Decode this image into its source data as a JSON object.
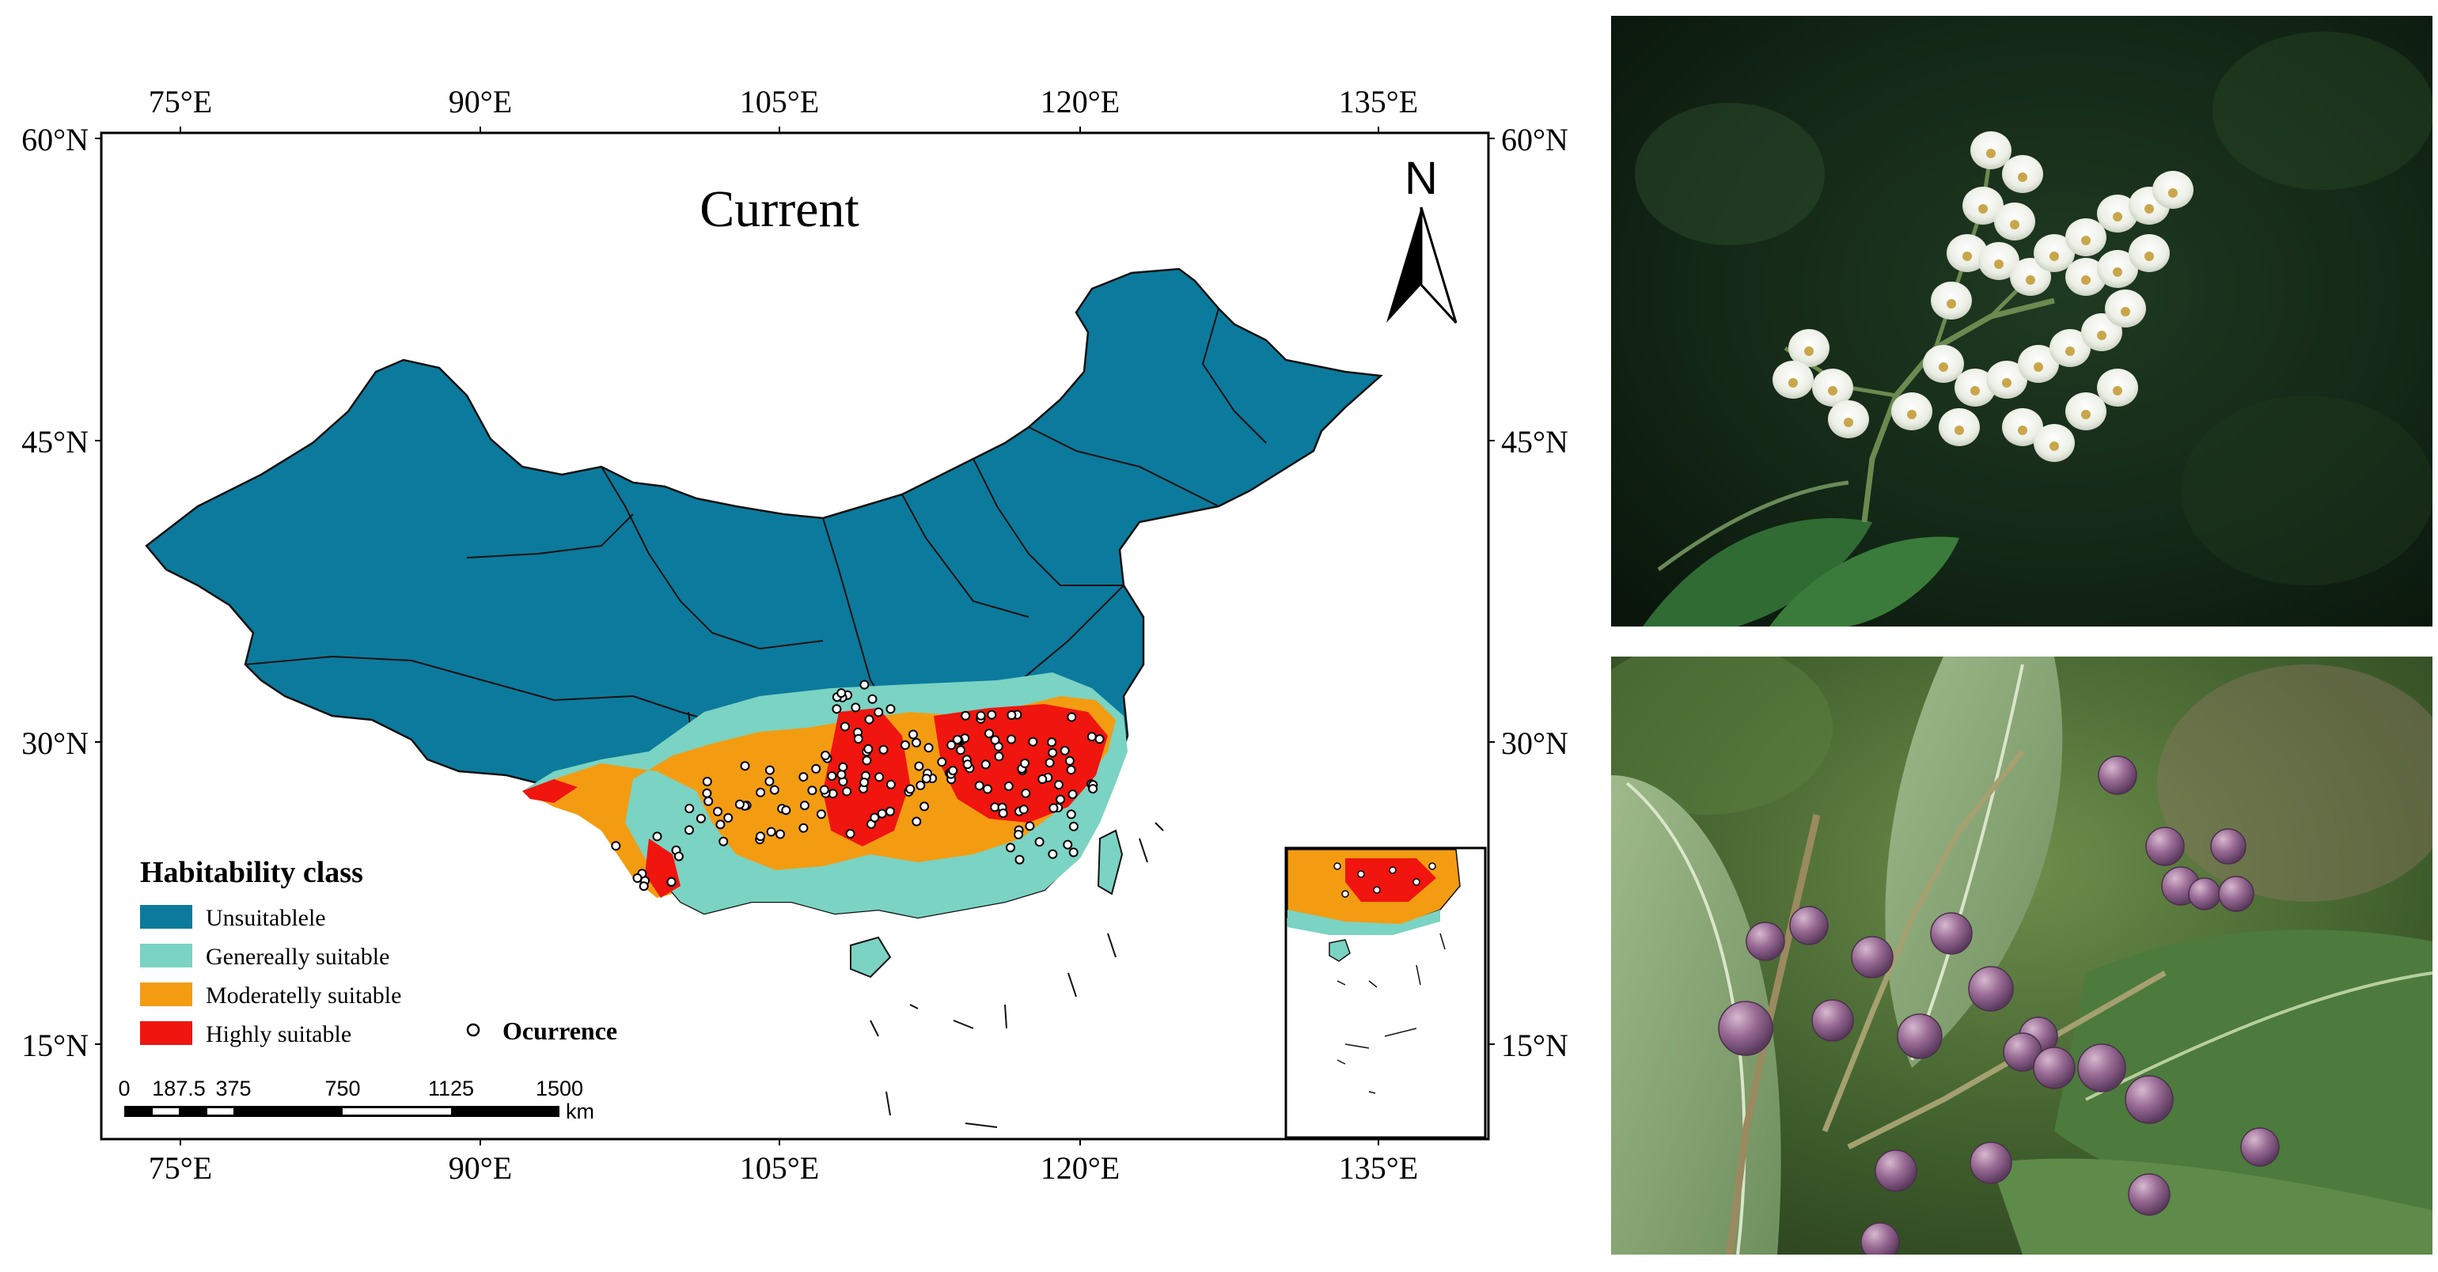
{
  "map": {
    "title": "Current",
    "north_label": "N",
    "lon_ticks": [
      "75°E",
      "90°E",
      "105°E",
      "120°E",
      "135°E"
    ],
    "lat_ticks": [
      "60°N",
      "45°N",
      "30°N",
      "15°N"
    ],
    "legend": {
      "title": "Habitability class",
      "items": [
        {
          "label": "Unsuitablele",
          "color": "#0c7a9c"
        },
        {
          "label": "Genereally suitable",
          "color": "#7ad3c3"
        },
        {
          "label": "Moderatelly suitable",
          "color": "#f39c12"
        },
        {
          "label": "Highly suitable",
          "color": "#f0150f"
        }
      ],
      "occurrence_label": "Ocurrence"
    },
    "scale_bar": {
      "ticks": [
        "0",
        "187.5",
        "375",
        "750",
        "1125",
        "1500"
      ],
      "unit": "km"
    }
  },
  "photos": [
    {
      "subject": "white bell-shaped flower cluster"
    },
    {
      "subject": "purple berries on green leaves"
    }
  ]
}
